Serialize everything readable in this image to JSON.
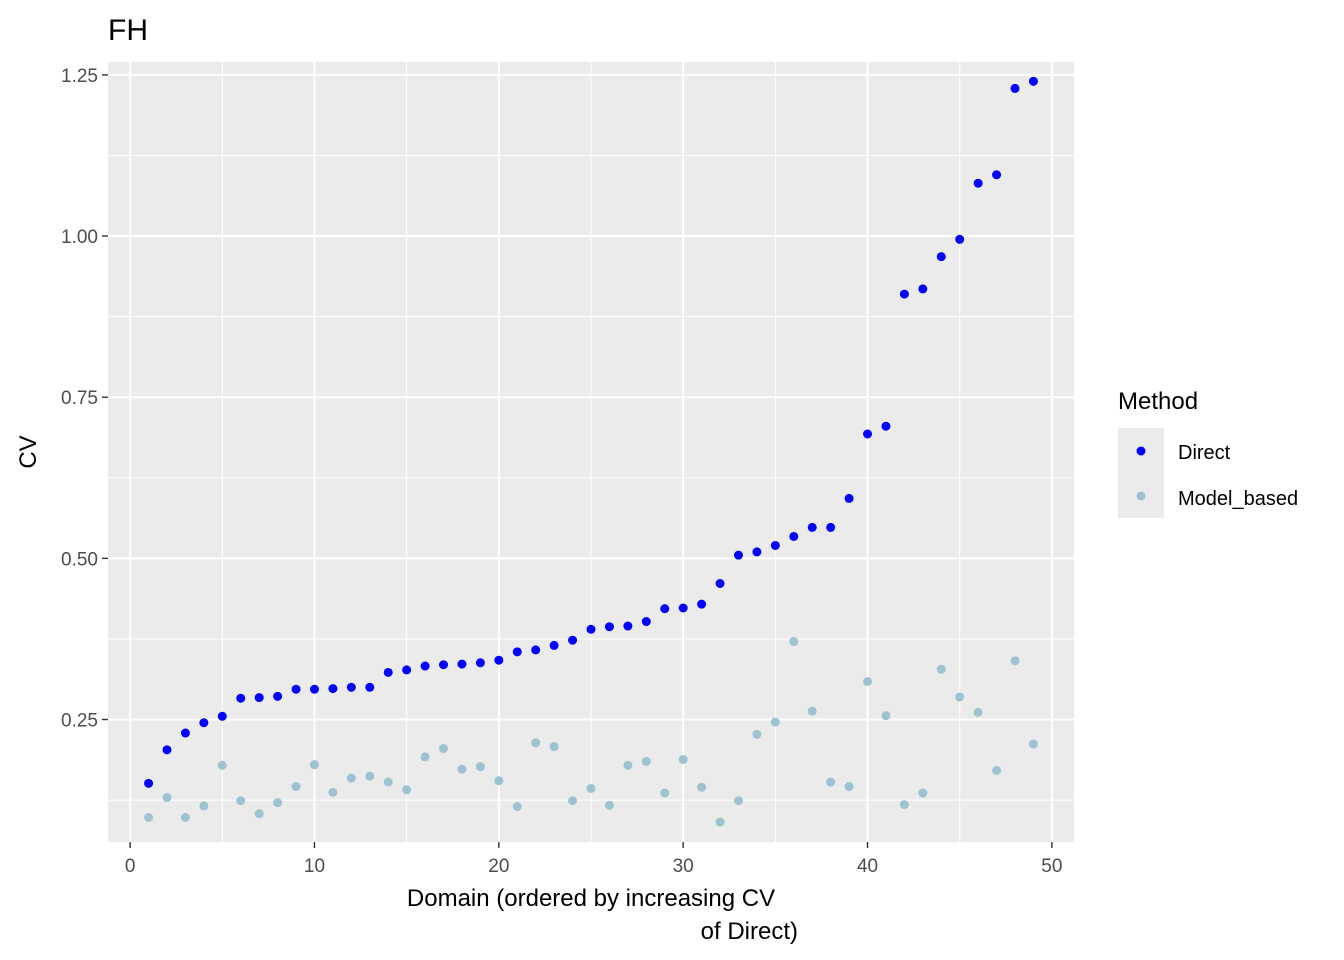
{
  "chart_data": {
    "type": "scatter",
    "title": "FH",
    "xlabel_lines": [
      "Domain (ordered by increasing CV",
      "of Direct)"
    ],
    "ylabel": "CV",
    "xlim": [
      -1.2,
      51.2
    ],
    "ylim": [
      0.06,
      1.27
    ],
    "xticks": [
      0,
      10,
      20,
      30,
      40,
      50
    ],
    "xtick_labels": [
      "0",
      "10",
      "20",
      "30",
      "40",
      "50"
    ],
    "yticks": [
      0.25,
      0.5,
      0.75,
      1.0,
      1.25
    ],
    "ytick_labels": [
      "0.25",
      "0.50",
      "0.75",
      "1.00",
      "1.25"
    ],
    "grid": true,
    "legend_title": "Method",
    "legend_position": "right",
    "x": [
      1,
      2,
      3,
      4,
      5,
      6,
      7,
      8,
      9,
      10,
      11,
      12,
      13,
      14,
      15,
      16,
      17,
      18,
      19,
      20,
      21,
      22,
      23,
      24,
      25,
      26,
      27,
      28,
      29,
      30,
      31,
      32,
      33,
      34,
      35,
      36,
      37,
      38,
      39,
      40,
      41,
      42,
      43,
      44,
      45,
      46,
      47,
      48,
      49
    ],
    "series": [
      {
        "name": "Direct",
        "color": "#0000ff",
        "values": [
          0.151,
          0.203,
          0.229,
          0.245,
          0.255,
          0.283,
          0.284,
          0.286,
          0.297,
          0.297,
          0.298,
          0.3,
          0.3,
          0.323,
          0.327,
          0.333,
          0.335,
          0.336,
          0.338,
          0.342,
          0.355,
          0.358,
          0.365,
          0.373,
          0.39,
          0.394,
          0.395,
          0.402,
          0.422,
          0.423,
          0.429,
          0.461,
          0.505,
          0.51,
          0.52,
          0.534,
          0.548,
          0.548,
          0.593,
          0.693,
          0.705,
          0.91,
          0.918,
          0.968,
          0.995,
          1.082,
          1.095,
          1.229,
          1.24
        ]
      },
      {
        "name": "Model_based",
        "color": "#9dc3d2",
        "values": [
          0.098,
          0.129,
          0.098,
          0.116,
          0.179,
          0.124,
          0.104,
          0.121,
          0.146,
          0.18,
          0.137,
          0.159,
          0.162,
          0.153,
          0.141,
          0.192,
          0.205,
          0.173,
          0.177,
          0.155,
          0.115,
          0.214,
          0.208,
          0.124,
          0.143,
          0.117,
          0.179,
          0.185,
          0.136,
          0.188,
          0.145,
          0.091,
          0.124,
          0.227,
          0.246,
          0.371,
          0.263,
          0.153,
          0.146,
          0.309,
          0.256,
          0.118,
          0.136,
          0.328,
          0.285,
          0.261,
          0.171,
          0.341,
          0.212
        ]
      }
    ]
  }
}
